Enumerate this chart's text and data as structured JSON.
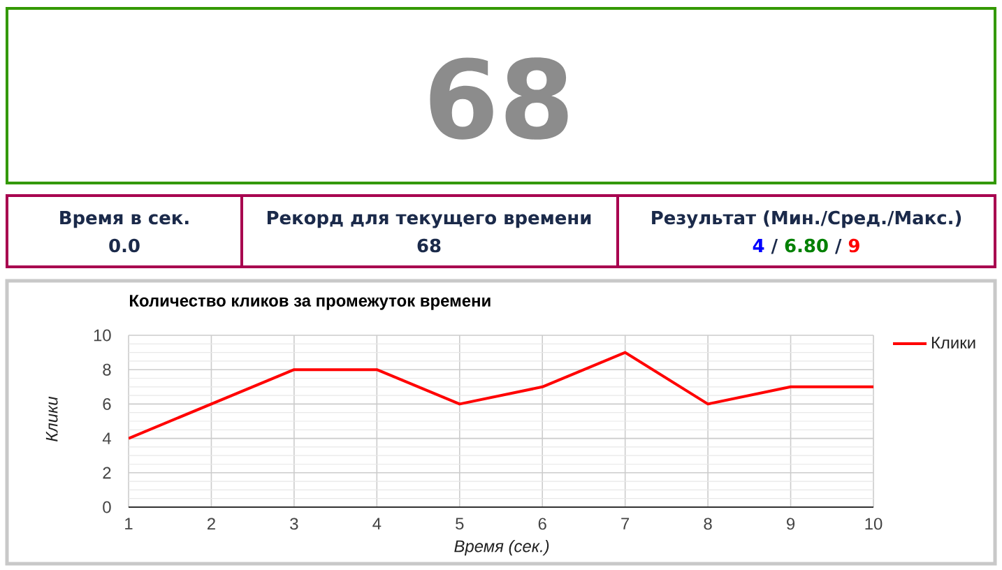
{
  "chart_data": [
    {
      "type": "other",
      "title": "68",
      "annotations": [
        "Время в сек.",
        "0.0",
        "Рекорд для текущего времени",
        "68",
        "Результат (Мин./Сред./Макс.)",
        "4",
        "/",
        "6.80",
        "/",
        "9"
      ]
    },
    {
      "type": "line",
      "title": "Количество кликов за промежуток времени",
      "xlabel": "Время (сек.)",
      "ylabel": "Клики",
      "x": [
        1,
        2,
        3,
        4,
        5,
        6,
        7,
        8,
        9,
        10
      ],
      "series": [
        {
          "name": "Клики",
          "color": "#ff0000",
          "values": [
            4,
            6,
            8,
            8,
            6,
            7,
            9,
            6,
            7,
            7
          ]
        }
      ],
      "xlim": [
        1,
        10
      ],
      "ylim": [
        0,
        10
      ],
      "xticks": [
        1,
        2,
        3,
        4,
        5,
        6,
        7,
        8,
        9,
        10
      ],
      "yticks": [
        0,
        2,
        4,
        6,
        8,
        10
      ],
      "grid": true,
      "legend": "top right"
    }
  ]
}
